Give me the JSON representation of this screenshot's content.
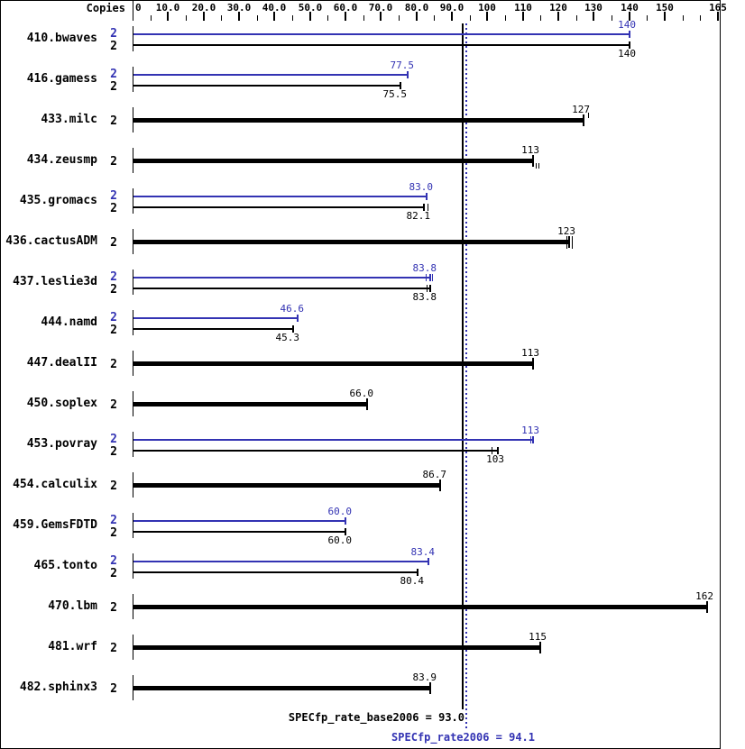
{
  "colors": {
    "peak": "#3333b3",
    "base": "#000000",
    "background": "#ffffff"
  },
  "chart_data": {
    "type": "bar",
    "orientation": "horizontal",
    "title": "",
    "xlabel": "",
    "xlim": [
      0,
      165
    ],
    "grid": false,
    "copies_column_header": "Copies",
    "axis": {
      "majors": [
        {
          "label": "0",
          "value": 0
        },
        {
          "label": "10.0",
          "value": 10
        },
        {
          "label": "20.0",
          "value": 20
        },
        {
          "label": "30.0",
          "value": 30
        },
        {
          "label": "40.0",
          "value": 40
        },
        {
          "label": "50.0",
          "value": 50
        },
        {
          "label": "60.0",
          "value": 60
        },
        {
          "label": "70.0",
          "value": 70
        },
        {
          "label": "80.0",
          "value": 80
        },
        {
          "label": "90.0",
          "value": 90
        },
        {
          "label": "100",
          "value": 100
        },
        {
          "label": "110",
          "value": 110
        },
        {
          "label": "120",
          "value": 120
        },
        {
          "label": "130",
          "value": 130
        },
        {
          "label": "140",
          "value": 140
        },
        {
          "label": "150",
          "value": 150
        },
        {
          "label": "165",
          "value": 165
        }
      ],
      "minor_values": [
        5,
        15,
        25,
        35,
        45,
        55,
        65,
        75,
        85,
        95,
        105,
        115,
        125,
        135,
        145,
        155,
        160
      ]
    },
    "series": [
      {
        "name": "SPECfp_rate2006 (peak)",
        "color": "#3333b3"
      },
      {
        "name": "SPECfp_rate_base2006 (base)",
        "color": "#000000"
      }
    ],
    "benchmarks": [
      {
        "name": "410.bwaves",
        "copies": "2",
        "peak": {
          "label": "140",
          "value": 140
        },
        "base": {
          "label": "140",
          "value": 140
        }
      },
      {
        "name": "416.gamess",
        "copies": "2",
        "peak": {
          "label": "77.5",
          "value": 77.5
        },
        "base": {
          "label": "75.5",
          "value": 75.5
        }
      },
      {
        "name": "433.milc",
        "copies": "2",
        "peak": null,
        "base": {
          "label": "127",
          "value": 127,
          "marks": [
            {
              "value": 128.5,
              "dir": "up"
            }
          ]
        }
      },
      {
        "name": "434.zeusmp",
        "copies": "2",
        "peak": null,
        "base": {
          "label": "113",
          "value": 113,
          "marks": [
            {
              "value": 113.6,
              "dir": "down"
            },
            {
              "value": 114.3,
              "dir": "down"
            }
          ]
        }
      },
      {
        "name": "435.gromacs",
        "copies": "2",
        "peak": {
          "label": "83.0",
          "value": 83.0
        },
        "base": {
          "label": "82.1",
          "value": 82.1,
          "marks": [
            {
              "value": 83.2,
              "dir": "mid"
            }
          ]
        }
      },
      {
        "name": "436.cactusADM",
        "copies": "2",
        "peak": null,
        "base": {
          "label": "123",
          "value": 123,
          "marks": [
            {
              "value": 122.3,
              "dir": "both"
            },
            {
              "value": 123.7,
              "dir": "both"
            }
          ]
        }
      },
      {
        "name": "437.leslie3d",
        "copies": "2",
        "peak": {
          "label": "83.8",
          "value": 83.8,
          "marks": [
            {
              "value": 82.6,
              "dir": "mid"
            },
            {
              "value": 84.4,
              "dir": "mid"
            }
          ]
        },
        "base": {
          "label": "83.8",
          "value": 83.8,
          "marks": [
            {
              "value": 82.8,
              "dir": "mid"
            }
          ]
        }
      },
      {
        "name": "444.namd",
        "copies": "2",
        "peak": {
          "label": "46.6",
          "value": 46.6
        },
        "base": {
          "label": "45.3",
          "value": 45.3
        }
      },
      {
        "name": "447.dealII",
        "copies": "2",
        "peak": null,
        "base": {
          "label": "113",
          "value": 113
        }
      },
      {
        "name": "450.soplex",
        "copies": "2",
        "peak": null,
        "base": {
          "label": "66.0",
          "value": 66.0
        }
      },
      {
        "name": "453.povray",
        "copies": "2",
        "peak": {
          "label": "113",
          "value": 113,
          "marks": [
            {
              "value": 112.2,
              "dir": "mid"
            }
          ]
        },
        "base": {
          "label": "103",
          "value": 103,
          "marks": [
            {
              "value": 101.3,
              "dir": "mid"
            }
          ]
        }
      },
      {
        "name": "454.calculix",
        "copies": "2",
        "peak": null,
        "base": {
          "label": "86.7",
          "value": 86.7
        }
      },
      {
        "name": "459.GemsFDTD",
        "copies": "2",
        "peak": {
          "label": "60.0",
          "value": 60.0
        },
        "base": {
          "label": "60.0",
          "value": 60.0
        }
      },
      {
        "name": "465.tonto",
        "copies": "2",
        "peak": {
          "label": "83.4",
          "value": 83.4
        },
        "base": {
          "label": "80.4",
          "value": 80.4
        }
      },
      {
        "name": "470.lbm",
        "copies": "2",
        "peak": null,
        "base": {
          "label": "162",
          "value": 162
        }
      },
      {
        "name": "481.wrf",
        "copies": "2",
        "peak": null,
        "base": {
          "label": "115",
          "value": 115
        }
      },
      {
        "name": "482.sphinx3",
        "copies": "2",
        "peak": null,
        "base": {
          "label": "83.9",
          "value": 83.9
        }
      }
    ],
    "reference_lines": [
      {
        "name": "base",
        "value": 93.0
      },
      {
        "name": "peak",
        "value": 94.1
      }
    ],
    "summary": {
      "base": "SPECfp_rate_base2006 = 93.0",
      "peak": "SPECfp_rate2006 = 94.1"
    }
  }
}
